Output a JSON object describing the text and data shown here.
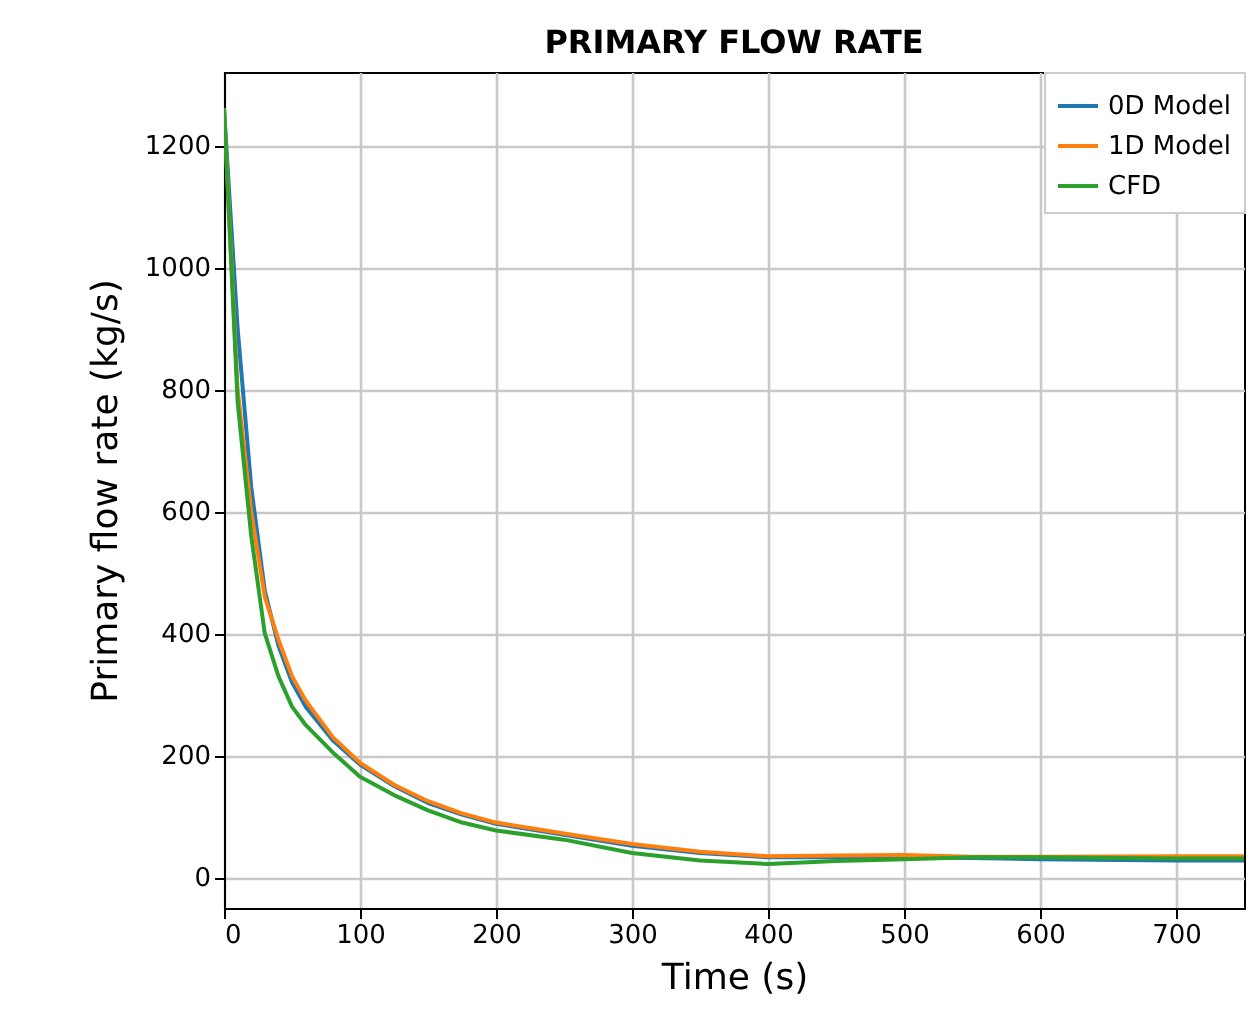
{
  "chart_data": {
    "type": "line",
    "title": "PRIMARY FLOW RATE",
    "xlabel": "Time (s)",
    "ylabel": "Primary flow rate (kg/s)",
    "xlim": [
      0,
      750
    ],
    "ylim": [
      -50,
      1320
    ],
    "xticks": [
      0,
      100,
      200,
      300,
      400,
      500,
      600,
      700
    ],
    "yticks": [
      0,
      200,
      400,
      600,
      800,
      1000,
      1200
    ],
    "grid": true,
    "legend": "top right",
    "x": [
      0,
      10,
      20,
      30,
      40,
      50,
      60,
      80,
      100,
      125,
      150,
      175,
      200,
      250,
      300,
      350,
      400,
      450,
      500,
      550,
      600,
      700,
      750
    ],
    "series": [
      {
        "name": "0D Model",
        "color": "#1f77b4",
        "values": [
          1260,
          900,
          640,
          470,
          380,
          320,
          280,
          225,
          185,
          150,
          122,
          103,
          88,
          70,
          52,
          40,
          33,
          33,
          33,
          32,
          30,
          28,
          28
        ]
      },
      {
        "name": "1D Model",
        "color": "#ff7f0e",
        "values": [
          1260,
          800,
          600,
          460,
          390,
          330,
          290,
          230,
          188,
          152,
          125,
          105,
          90,
          72,
          55,
          42,
          35,
          36,
          37,
          34,
          34,
          35,
          35
        ]
      },
      {
        "name": "CFD",
        "color": "#2ca02c",
        "values": [
          1260,
          780,
          560,
          400,
          330,
          280,
          250,
          205,
          165,
          135,
          110,
          90,
          77,
          62,
          40,
          28,
          22,
          27,
          30,
          33,
          33,
          31,
          31
        ]
      }
    ]
  }
}
